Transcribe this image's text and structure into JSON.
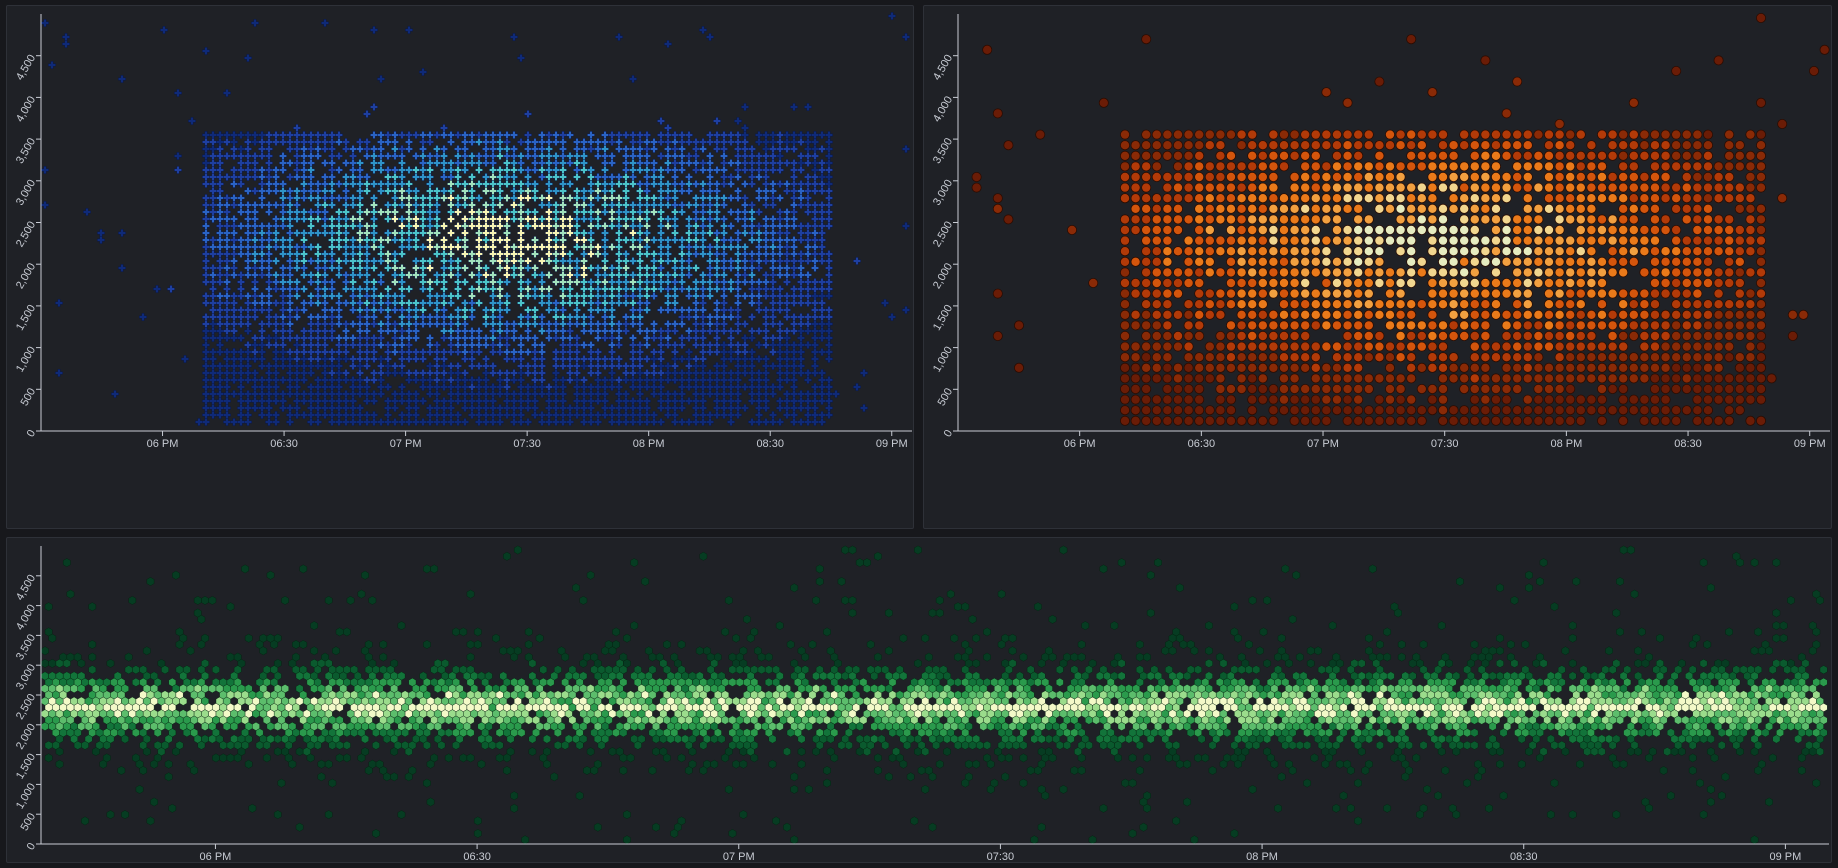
{
  "chart_data": [
    {
      "type": "scatter",
      "mark": "cross-cell density",
      "colors": [
        "#0f2a78",
        "#1e3fa0",
        "#2a63c4",
        "#2f93c8",
        "#4cc3c9",
        "#a2e2bd",
        "#f7f4b4"
      ],
      "x": {
        "range": [
          "17:30",
          "21:05"
        ],
        "ticks": [
          "06 PM",
          "06:30",
          "07 PM",
          "07:30",
          "08 PM",
          "08:30",
          "09 PM"
        ],
        "tick_values": [
          "18:00",
          "18:30",
          "19:00",
          "19:30",
          "20:00",
          "20:30",
          "21:00"
        ]
      },
      "y": {
        "range": [
          0,
          5000
        ],
        "ticks": [
          "0",
          "500",
          "1,000",
          "1,500",
          "2,000",
          "2,500",
          "3,000",
          "3,500",
          "4,000",
          "4,500"
        ],
        "tick_values": [
          0,
          500,
          1000,
          1500,
          2000,
          2500,
          3000,
          3500,
          4000,
          4500
        ]
      },
      "distribution": {
        "center": {
          "x": "19:25",
          "y": 2300
        },
        "core": {
          "x_from": "18:10",
          "x_to": "20:45",
          "y_from": 0,
          "y_to": 3550
        },
        "sparse_outliers": {
          "x_from": "17:35",
          "x_to": "21:00",
          "y_from": 100,
          "y_to": 4900
        }
      }
    },
    {
      "type": "scatter",
      "mark": "circle-cell density",
      "colors": [
        "#6a1c06",
        "#8a2a06",
        "#b23a08",
        "#d4550c",
        "#ea7a1a",
        "#f2a040",
        "#f1d68f",
        "#e6ecc0"
      ],
      "x": {
        "range": [
          "17:30",
          "21:05"
        ],
        "ticks": [
          "06 PM",
          "06:30",
          "07 PM",
          "07:30",
          "08 PM",
          "08:30",
          "09 PM"
        ],
        "tick_values": [
          "18:00",
          "18:30",
          "19:00",
          "19:30",
          "20:00",
          "20:30",
          "21:00"
        ]
      },
      "y": {
        "range": [
          0,
          5000
        ],
        "ticks": [
          "0",
          "500",
          "1,000",
          "1,500",
          "2,000",
          "2,500",
          "3,000",
          "3,500",
          "4,000",
          "4,500"
        ],
        "tick_values": [
          0,
          500,
          1000,
          1500,
          2000,
          2500,
          3000,
          3500,
          4000,
          4500
        ]
      },
      "distribution": {
        "center": {
          "x": "19:25",
          "y": 2250
        },
        "core": {
          "x_from": "18:10",
          "x_to": "20:50",
          "y_from": 100,
          "y_to": 3600
        },
        "sparse_outliers": {
          "x_from": "17:35",
          "x_to": "21:05",
          "y_from": 250,
          "y_to": 4950
        }
      }
    },
    {
      "type": "scatter",
      "mark": "hexbin density",
      "colors": [
        "#063c22",
        "#0a5a2e",
        "#12743a",
        "#2a9a4c",
        "#5cbd6c",
        "#9bdc8c",
        "#f3f9c8"
      ],
      "x": {
        "range": [
          "17:40",
          "21:05"
        ],
        "ticks": [
          "06 PM",
          "06:30",
          "07 PM",
          "07:30",
          "08 PM",
          "08:30",
          "09 PM"
        ],
        "tick_values": [
          "18:00",
          "18:30",
          "19:00",
          "19:30",
          "20:00",
          "20:30",
          "21:00"
        ]
      },
      "y": {
        "range": [
          0,
          5000
        ],
        "ticks": [
          "0",
          "500",
          "1,000",
          "1,500",
          "2,000",
          "2,500",
          "3,000",
          "3,500",
          "4,000",
          "4,500"
        ],
        "tick_values": [
          0,
          500,
          1000,
          1500,
          2000,
          2500,
          3000,
          3500,
          4000,
          4500
        ]
      },
      "distribution": {
        "band_center_y": 2300,
        "core": {
          "y_from": 1800,
          "y_to": 2900
        },
        "sparse_outliers": {
          "y_from": 200,
          "y_to": 4850
        }
      }
    }
  ]
}
